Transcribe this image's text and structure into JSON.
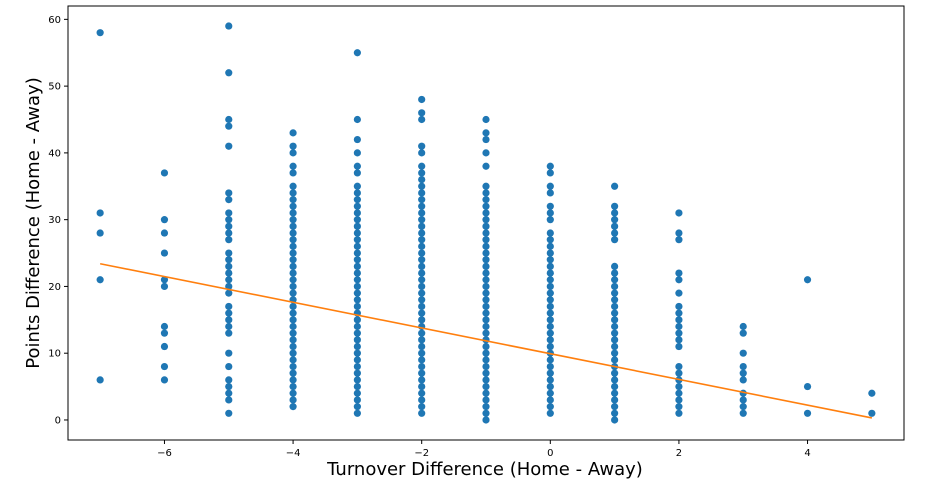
{
  "chart_data": {
    "type": "scatter",
    "title": "",
    "xlabel": "Turnover Difference (Home - Away)",
    "ylabel": "Points Difference (Home - Away)",
    "xlim": [
      -7.5,
      5.5
    ],
    "ylim": [
      -3,
      62
    ],
    "x_ticks": [
      -6,
      -4,
      -2,
      0,
      2,
      4
    ],
    "y_ticks": [
      0,
      10,
      20,
      30,
      40,
      50,
      60
    ],
    "x_tick_labels": [
      "−6",
      "−4",
      "−2",
      "0",
      "2",
      "4"
    ],
    "y_tick_labels": [
      "0",
      "10",
      "20",
      "30",
      "40",
      "50",
      "60"
    ],
    "grid": false,
    "legend": "none",
    "colors": {
      "points": "#1f77b4",
      "fit_line": "#ff7f0e",
      "axes": "#000000"
    },
    "series": [
      {
        "kind": "points",
        "groups": [
          {
            "x": -7,
            "y": [
              6,
              21,
              28,
              31,
              58
            ]
          },
          {
            "x": -6,
            "y": [
              6,
              8,
              11,
              13,
              14,
              20,
              21,
              25,
              28,
              30,
              37
            ]
          },
          {
            "x": -5,
            "y": [
              1,
              3,
              4,
              5,
              6,
              8,
              10,
              13,
              14,
              15,
              16,
              17,
              19,
              20,
              21,
              22,
              23,
              24,
              25,
              27,
              28,
              29,
              30,
              31,
              33,
              34,
              41,
              44,
              45,
              52,
              59
            ]
          },
          {
            "x": -4,
            "y": [
              2,
              3,
              4,
              5,
              6,
              7,
              8,
              9,
              10,
              11,
              12,
              13,
              14,
              15,
              16,
              17,
              18,
              19,
              20,
              21,
              22,
              23,
              24,
              25,
              26,
              27,
              28,
              29,
              30,
              31,
              32,
              33,
              34,
              35,
              37,
              38,
              40,
              41,
              43
            ]
          },
          {
            "x": -3,
            "y": [
              1,
              2,
              3,
              4,
              5,
              6,
              7,
              8,
              9,
              10,
              11,
              12,
              13,
              14,
              15,
              16,
              17,
              18,
              19,
              20,
              21,
              22,
              23,
              24,
              25,
              26,
              27,
              28,
              29,
              30,
              31,
              32,
              33,
              34,
              35,
              37,
              38,
              40,
              42,
              45,
              55
            ]
          },
          {
            "x": -2,
            "y": [
              1,
              2,
              3,
              4,
              5,
              6,
              7,
              8,
              9,
              10,
              11,
              12,
              13,
              14,
              15,
              16,
              17,
              18,
              19,
              20,
              21,
              22,
              23,
              24,
              25,
              26,
              27,
              28,
              29,
              30,
              31,
              32,
              33,
              34,
              35,
              36,
              37,
              38,
              40,
              41,
              45,
              46,
              48
            ]
          },
          {
            "x": -1,
            "y": [
              0,
              1,
              2,
              3,
              4,
              5,
              6,
              7,
              8,
              9,
              10,
              11,
              12,
              13,
              14,
              15,
              16,
              17,
              18,
              19,
              20,
              21,
              22,
              23,
              24,
              25,
              26,
              27,
              28,
              29,
              30,
              31,
              32,
              33,
              34,
              35,
              38,
              40,
              42,
              43,
              45
            ]
          },
          {
            "x": 0,
            "y": [
              1,
              2,
              3,
              4,
              5,
              6,
              7,
              8,
              9,
              10,
              11,
              12,
              13,
              14,
              15,
              16,
              17,
              18,
              19,
              20,
              21,
              22,
              23,
              24,
              25,
              26,
              27,
              28,
              30,
              31,
              32,
              34,
              35,
              37,
              38
            ]
          },
          {
            "x": 1,
            "y": [
              0,
              1,
              2,
              3,
              4,
              5,
              6,
              7,
              8,
              9,
              10,
              11,
              12,
              13,
              14,
              15,
              16,
              17,
              18,
              19,
              20,
              21,
              22,
              23,
              27,
              28,
              29,
              30,
              31,
              32,
              35
            ]
          },
          {
            "x": 2,
            "y": [
              1,
              2,
              3,
              4,
              5,
              6,
              7,
              8,
              11,
              12,
              13,
              14,
              15,
              16,
              17,
              19,
              21,
              22,
              27,
              28,
              31
            ]
          },
          {
            "x": 3,
            "y": [
              1,
              2,
              3,
              4,
              6,
              7,
              8,
              10,
              13,
              14
            ]
          },
          {
            "x": 4,
            "y": [
              1,
              5,
              21
            ]
          },
          {
            "x": 5,
            "y": [
              1,
              4
            ]
          }
        ]
      },
      {
        "kind": "fit-line",
        "x": [
          -7,
          5
        ],
        "y": [
          23.4,
          0.3
        ]
      }
    ]
  }
}
